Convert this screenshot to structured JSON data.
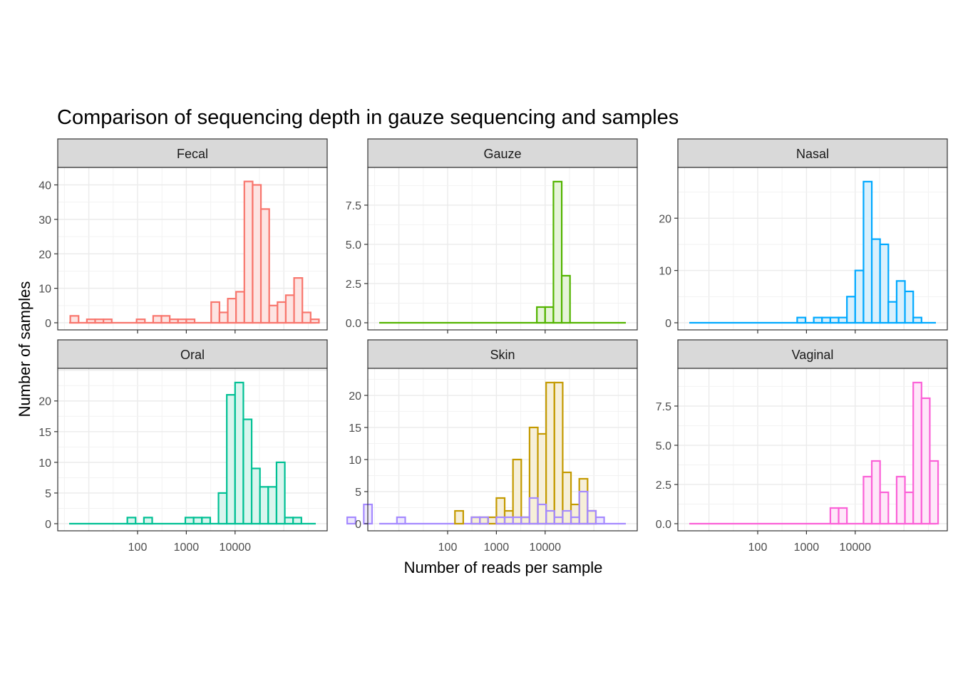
{
  "chart_data": {
    "type": "bar",
    "title": "Comparison of sequencing depth in gauze sequencing and samples",
    "xlabel": "Number of reads per sample",
    "ylabel": "Number of samples",
    "x_scale": "log10",
    "x_ticks": [
      100,
      1000,
      10000
    ],
    "x_tick_labels": [
      "100",
      "1000",
      "10000"
    ],
    "bin_width_log10": 0.17,
    "grid": true,
    "facets": [
      {
        "name": "Fecal",
        "ylim": [
          0,
          43
        ],
        "y_ticks": [
          0,
          10,
          20,
          30,
          40
        ],
        "y_tick_labels": [
          "0",
          "10",
          "20",
          "30",
          "40"
        ],
        "color": "#F8766D",
        "fill": "#FDE4E2",
        "bin_start_log10": 0.62,
        "counts": [
          2,
          0,
          1,
          1,
          1,
          0,
          0,
          0,
          1,
          0,
          2,
          2,
          1,
          1,
          1,
          0,
          0,
          6,
          3,
          7,
          9,
          41,
          40,
          33,
          5,
          6,
          8,
          13,
          3,
          1
        ]
      },
      {
        "name": "Gauze",
        "ylim": [
          0,
          9.45
        ],
        "y_ticks": [
          0,
          2.5,
          5,
          7.5
        ],
        "y_tick_labels": [
          "0.0",
          "2.5",
          "5.0",
          "7.5"
        ],
        "color": "#53B400",
        "fill": "#E6F4D9",
        "bin_start_log10": 3.83,
        "counts": [
          1,
          1,
          9,
          3
        ]
      },
      {
        "name": "Nasal",
        "ylim": [
          0,
          28.35
        ],
        "y_ticks": [
          0,
          10,
          20
        ],
        "y_tick_labels": [
          "0",
          "10",
          "20"
        ],
        "color": "#00A9FF",
        "fill": "#D9F0FC",
        "bin_start_log10": 2.81,
        "counts": [
          1,
          0,
          1,
          1,
          1,
          1,
          5,
          10,
          27,
          16,
          15,
          4,
          8,
          6,
          1
        ]
      },
      {
        "name": "Oral",
        "ylim": [
          0,
          24.15
        ],
        "y_ticks": [
          0,
          5,
          10,
          15,
          20
        ],
        "y_tick_labels": [
          "0",
          "5",
          "10",
          "15",
          "20"
        ],
        "color": "#00C094",
        "fill": "#D9F5EE",
        "bin_start_log10": 1.79,
        "counts": [
          1,
          0,
          1,
          0,
          0,
          0,
          0,
          1,
          1,
          1,
          0,
          5,
          21,
          23,
          17,
          9,
          6,
          6,
          10,
          1,
          1
        ]
      },
      {
        "name": "Skin",
        "ylim": [
          0,
          23.1
        ],
        "y_ticks": [
          0,
          5,
          10,
          15,
          20
        ],
        "y_tick_labels": [
          "0",
          "5",
          "10",
          "15",
          "20"
        ],
        "color": "#C49A00",
        "fill": "#F6EFD9",
        "overlay_color": "#A58AFF",
        "overlay_fill": "#EEE9FC",
        "bin_start_log10": -0.06,
        "counts": [
          0,
          0,
          0,
          0,
          0,
          0,
          0,
          0,
          0,
          0,
          0,
          0,
          0,
          2,
          0,
          1,
          1,
          1,
          4,
          2,
          10,
          1,
          15,
          14,
          22,
          22,
          8,
          3,
          7,
          2
        ],
        "overlay_counts": [
          1,
          0,
          3,
          0,
          0,
          0,
          1,
          0,
          0,
          0,
          0,
          0,
          0,
          0,
          0,
          1,
          1,
          0,
          1,
          1,
          1,
          1,
          4,
          3,
          2,
          1,
          2,
          1,
          5,
          2,
          1
        ]
      },
      {
        "name": "Vaginal",
        "ylim": [
          0,
          9.45
        ],
        "y_ticks": [
          0,
          2.5,
          5,
          7.5
        ],
        "y_tick_labels": [
          "0.0",
          "2.5",
          "5.0",
          "7.5"
        ],
        "color": "#FB61D7",
        "fill": "#FEE7F9",
        "bin_start_log10": 3.49,
        "counts": [
          1,
          1,
          0,
          0,
          3,
          4,
          2,
          0,
          3,
          2,
          9,
          8,
          4
        ]
      }
    ]
  }
}
